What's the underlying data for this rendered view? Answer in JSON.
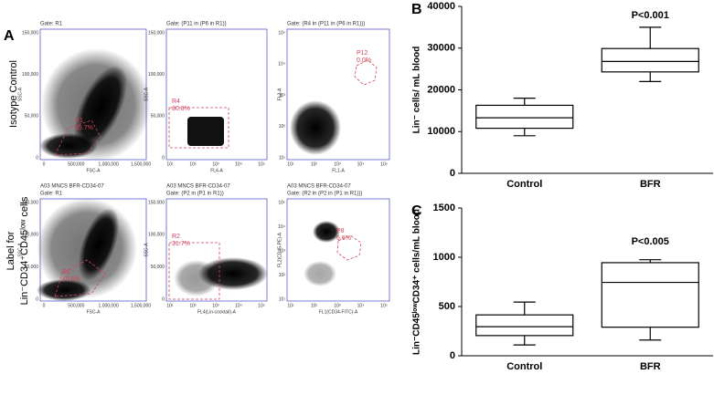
{
  "chart_data": [
    {
      "type": "box",
      "panel": "B",
      "ylabel": "Lin⁻ cells/ mL blood",
      "annotation": "P<0.001",
      "categories": [
        "Control",
        "BFR"
      ],
      "boxes": [
        {
          "min": 9000,
          "q1": 10800,
          "median": 13300,
          "q3": 16300,
          "max": 18000
        },
        {
          "min": 22000,
          "q1": 24300,
          "median": 26800,
          "q3": 29900,
          "max": 35000
        }
      ],
      "ylim": [
        0,
        40000
      ],
      "yticks": [
        0,
        10000,
        20000,
        30000,
        40000
      ],
      "color": "#000000"
    },
    {
      "type": "box",
      "panel": "C",
      "ylabel": "Lin⁻CD45ˡᵒʷCD34⁺ cells/mL blood",
      "annotation": "P<0.005",
      "categories": [
        "Control",
        "BFR"
      ],
      "boxes": [
        {
          "min": 110,
          "q1": 205,
          "median": 295,
          "q3": 415,
          "max": 545
        },
        {
          "min": 160,
          "q1": 290,
          "median": 745,
          "q3": 945,
          "max": 975
        }
      ],
      "ylim": [
        0,
        1500
      ],
      "yticks": [
        0,
        500,
        1000,
        1500
      ],
      "color": "#000000"
    }
  ],
  "figure_a": {
    "panel": "A",
    "row_labels": [
      "Isotype Control",
      "Label for",
      "Lin⁻CD34⁺CD45ˡᵒʷ cells"
    ],
    "lin_ticks_y": [
      "150,000",
      "100,000",
      "50,000",
      "0"
    ],
    "lin_ticks_x": [
      "0",
      "500,000",
      "1,000,000",
      "1,500,000"
    ],
    "log_ticks": [
      "10¹",
      "10²",
      "10³",
      "10⁴",
      "10⁵"
    ],
    "plots": [
      {
        "header": [
          "Gate: R1"
        ],
        "xlabel": "FSC-A",
        "ylabel": "SSC-A",
        "xscale": "lin",
        "yscale": "lin",
        "regions": [
          "R1",
          "35.7%"
        ]
      },
      {
        "header": [
          "Gate: (P11 in (P6 in R1))"
        ],
        "xlabel": "FL4-A",
        "ylabel": "SSC-A",
        "xscale": "log",
        "yscale": "lin",
        "regions": [
          "R4",
          "80.8%"
        ]
      },
      {
        "header": [
          "Gate: (R4 in (P11 in (P6 in R1)))"
        ],
        "xlabel": "FL1-A",
        "ylabel": "FL2-A",
        "xscale": "log",
        "yscale": "log",
        "regions": [
          "P12",
          "0.0%"
        ]
      },
      {
        "header": [
          "A03 MNCS BFR-CD34-07",
          "Gate: R1"
        ],
        "xlabel": "FSC-A",
        "ylabel": "SSC-A",
        "xscale": "lin",
        "yscale": "lin",
        "regions": [
          "R1",
          "40.6%"
        ]
      },
      {
        "header": [
          "A03 MNCS BFR-CD34-07",
          "Gate: (P2 in (P1 in R1))"
        ],
        "xlabel": "FL4(Lin-cocktail)-A",
        "ylabel": "SSC-A",
        "xscale": "log",
        "yscale": "lin",
        "regions": [
          "R2",
          "31.7%"
        ]
      },
      {
        "header": [
          "A03 MNCS BFR-CD34-07",
          "Gate: (R2 in (P2 in (P1 in R1)))"
        ],
        "xlabel": "FL1(CD34-FITC)-A",
        "ylabel": "FL2(CD45-PE)-A",
        "xscale": "log",
        "yscale": "log",
        "regions": [
          "P8",
          "6.6%"
        ]
      }
    ]
  }
}
